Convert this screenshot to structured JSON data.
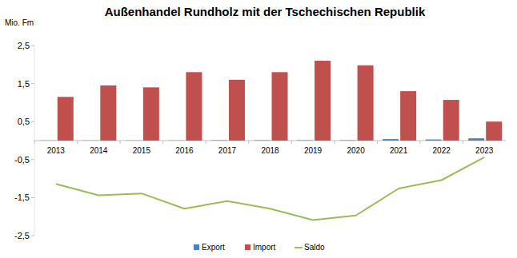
{
  "chart_data": {
    "type": "bar",
    "title": "Außenhandel Rundholz mit der Tschechischen Republik",
    "y_label": "Mio. Fm",
    "categories": [
      "2013",
      "2014",
      "2015",
      "2016",
      "2017",
      "2018",
      "2019",
      "2020",
      "2021",
      "2022",
      "2023"
    ],
    "series": [
      {
        "name": "Export",
        "type": "bar",
        "color": "#4f81bd",
        "values": [
          0.005,
          0.005,
          0.005,
          0.005,
          0.01,
          0.01,
          0.01,
          0.01,
          0.04,
          0.03,
          0.06
        ]
      },
      {
        "name": "Import",
        "type": "bar",
        "color": "#c0504d",
        "values": [
          1.15,
          1.45,
          1.4,
          1.8,
          1.6,
          1.8,
          2.1,
          1.98,
          1.3,
          1.07,
          0.5
        ]
      },
      {
        "name": "Saldo",
        "type": "line",
        "color": "#9bbb59",
        "values": [
          -1.14,
          -1.44,
          -1.39,
          -1.79,
          -1.59,
          -1.79,
          -2.09,
          -1.97,
          -1.26,
          -1.04,
          -0.44
        ]
      }
    ],
    "ylim": [
      -2.5,
      2.5
    ],
    "yticks": [
      {
        "value": 2.5,
        "label": "2,5"
      },
      {
        "value": 1.5,
        "label": "1,5"
      },
      {
        "value": 0.5,
        "label": "0,5"
      },
      {
        "value": -0.5,
        "label": "-0,5"
      },
      {
        "value": -1.5,
        "label": "-1,5"
      },
      {
        "value": -2.5,
        "label": "-2,5"
      }
    ],
    "grid": false,
    "legend": "bottom"
  }
}
